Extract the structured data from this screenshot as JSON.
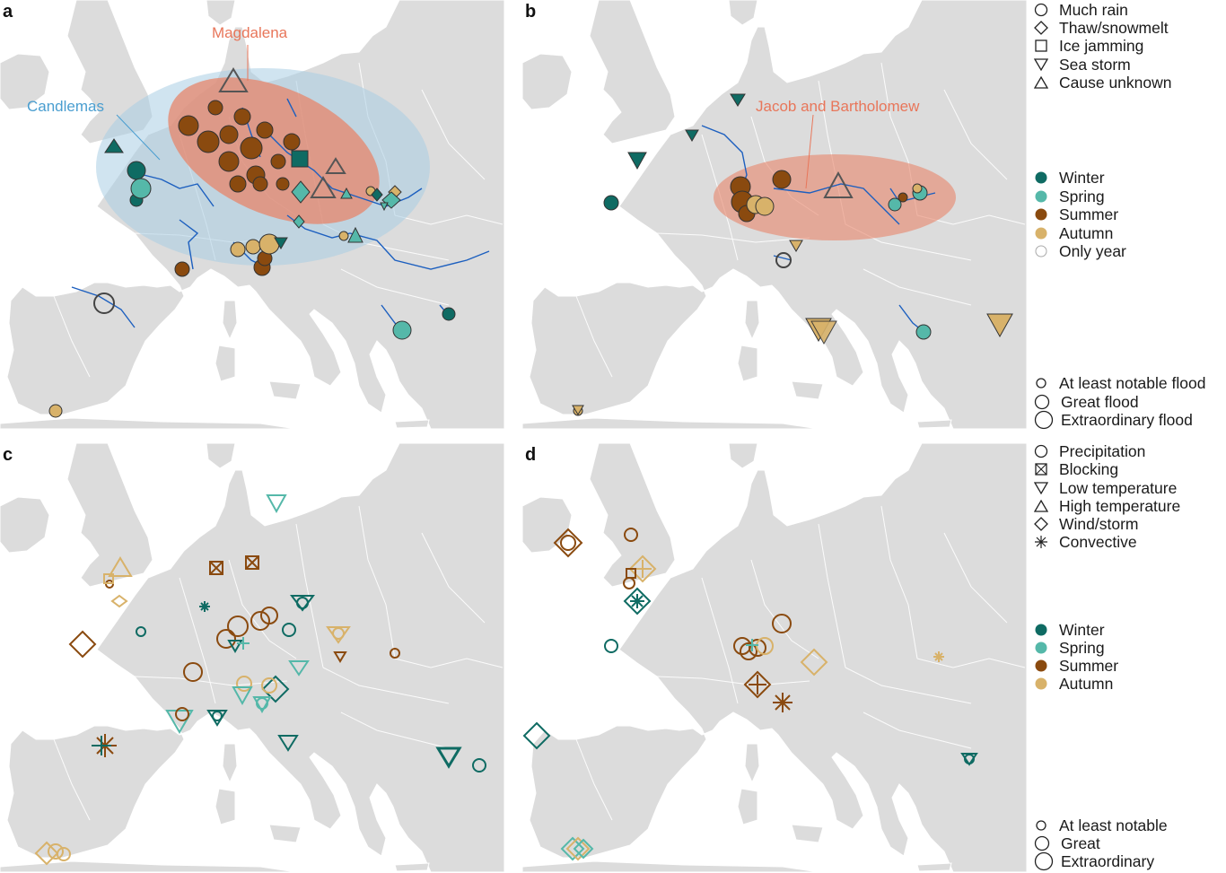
{
  "panels": {
    "a": {
      "label": "a",
      "ellipse_labels": {
        "candlemas": "Candlemas",
        "magdalena": "Magdalena"
      }
    },
    "b": {
      "label": "b",
      "ellipse_labels": {
        "jacob": "Jacob and Bartholomew"
      }
    },
    "c": {
      "label": "c"
    },
    "d": {
      "label": "d"
    }
  },
  "colors": {
    "winter": "#0f6b63",
    "spring": "#55b8a9",
    "summer": "#8a4a0f",
    "autumn": "#d8b26a",
    "land": "#dcdcdc",
    "sea": "#ffffff",
    "river": "#1c5fbf",
    "candlemas_ellipse": "#a9cde3",
    "magdalena_ellipse": "#e7866b",
    "candlemas_text": "#4a9ed0",
    "magdalena_text": "#e8765a"
  },
  "legend_top": {
    "cause": [
      {
        "icon": "circle-icon",
        "label": "Much rain"
      },
      {
        "icon": "diamond-icon",
        "label": "Thaw/snowmelt"
      },
      {
        "icon": "square-icon",
        "label": "Ice jamming"
      },
      {
        "icon": "triangle-down-icon",
        "label": "Sea storm"
      },
      {
        "icon": "triangle-up-icon",
        "label": "Cause unknown"
      }
    ],
    "season": [
      {
        "icon": "winter-dot-icon",
        "label": "Winter"
      },
      {
        "icon": "spring-dot-icon",
        "label": "Spring"
      },
      {
        "icon": "summer-dot-icon",
        "label": "Summer"
      },
      {
        "icon": "autumn-dot-icon",
        "label": "Autumn"
      },
      {
        "icon": "only-year-dot-icon",
        "label": "Only year"
      }
    ],
    "magnitude": [
      {
        "icon": "small-circle-icon",
        "label": "At least notable flood"
      },
      {
        "icon": "medium-circle-icon",
        "label": "Great flood"
      },
      {
        "icon": "large-circle-icon",
        "label": "Extraordinary flood"
      }
    ]
  },
  "legend_bottom": {
    "driver": [
      {
        "icon": "circle-icon",
        "label": "Precipitation"
      },
      {
        "icon": "boxed-x-icon",
        "label": "Blocking"
      },
      {
        "icon": "triangle-down-icon",
        "label": "Low temperature"
      },
      {
        "icon": "triangle-up-icon",
        "label": "High temperature"
      },
      {
        "icon": "diamond-icon",
        "label": "Wind/storm"
      },
      {
        "icon": "asterisk-icon",
        "label": "Convective"
      }
    ],
    "season": [
      {
        "icon": "winter-dot-icon",
        "label": "Winter"
      },
      {
        "icon": "spring-dot-icon",
        "label": "Spring"
      },
      {
        "icon": "summer-dot-icon",
        "label": "Summer"
      },
      {
        "icon": "autumn-dot-icon",
        "label": "Autumn"
      }
    ],
    "magnitude": [
      {
        "icon": "small-circle-icon",
        "label": "At least notable"
      },
      {
        "icon": "medium-circle-icon",
        "label": "Great"
      },
      {
        "icon": "large-circle-icon",
        "label": "Extraordinary"
      }
    ]
  }
}
